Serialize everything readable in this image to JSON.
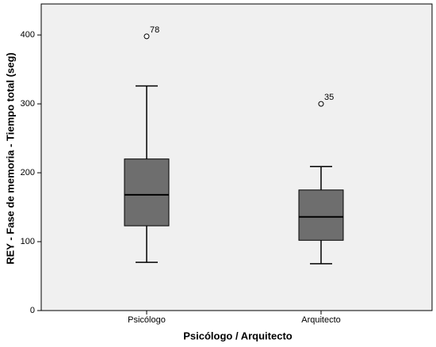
{
  "chart_data": {
    "type": "box",
    "x_label": "Psicólogo / Arquitecto",
    "y_label": "REY - Fase de memoria - Tiempo total (seg)",
    "categories": [
      "Psicólogo",
      "Arquitecto"
    ],
    "boxes": [
      {
        "min": 70,
        "q1": 123,
        "median": 168,
        "q3": 220,
        "max": 326,
        "outliers": [
          {
            "value": 398,
            "label": "78"
          }
        ]
      },
      {
        "min": 68,
        "q1": 102,
        "median": 136,
        "q3": 175,
        "max": 209,
        "outliers": [
          {
            "value": 300,
            "label": "35"
          }
        ]
      }
    ],
    "color": "#6e6e6e",
    "ylim": [
      0,
      445
    ],
    "yticks": [
      0,
      100,
      200,
      300,
      400
    ]
  }
}
